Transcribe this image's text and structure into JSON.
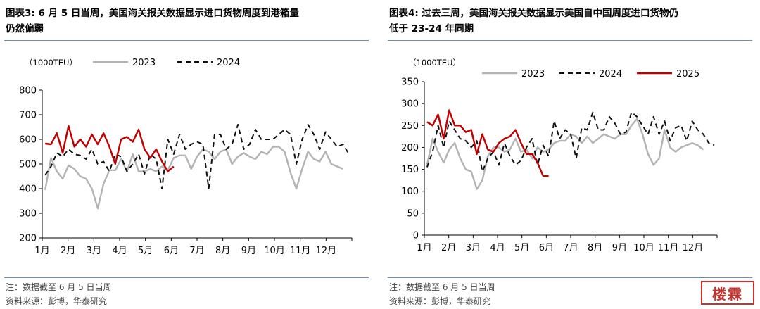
{
  "charts": [
    {
      "title_line1": "图表3:  6 月 5 日当周，美国海关报关数据显示进口货物周度到港箱量",
      "title_line2": "仍然偏弱",
      "note_line1": "注：数据截至 6 月 5 日当周",
      "note_line2": "资料来源：彭博，华泰研究"
    },
    {
      "title_line1": "图表4:  过去三周，美国海关报关数据显示美国自中国周度进口货物仍",
      "title_line2": "低于 23-24 年同期",
      "note_line1": "注：数据截至 6 月 5 日当周",
      "note_line2": "资料来源：彭博，华泰研究"
    }
  ],
  "stamp": "楼霖",
  "chart_data": [
    {
      "type": "line",
      "unit_label": "（1000TEU）",
      "xlabels": [
        "1月",
        "2月",
        "3月",
        "4月",
        "5月",
        "6月",
        "7月",
        "8月",
        "9月",
        "10月",
        "11月",
        "12月"
      ],
      "ylim": [
        200,
        800
      ],
      "yticks": [
        200,
        300,
        400,
        500,
        600,
        700,
        800
      ],
      "legend_position": "top",
      "grid": false,
      "series": [
        {
          "name": "2023",
          "color": "#b3b3b3",
          "dash": "solid",
          "values": [
            395,
            525,
            470,
            440,
            495,
            480,
            450,
            440,
            400,
            320,
            420,
            475,
            475,
            520,
            470,
            540,
            470,
            470,
            480,
            470,
            490,
            475,
            525,
            535,
            535,
            480,
            530,
            560,
            550,
            520,
            550,
            560,
            500,
            530,
            545,
            530,
            520,
            550,
            540,
            570,
            570,
            550,
            465,
            400,
            480,
            550,
            520,
            510,
            550,
            500,
            490,
            480
          ]
        },
        {
          "name": "2024",
          "color": "#111111",
          "dash": "dashed",
          "values": [
            455,
            490,
            545,
            530,
            560,
            540,
            535,
            520,
            560,
            500,
            510,
            470,
            540,
            530,
            470,
            500,
            540,
            460,
            540,
            520,
            400,
            600,
            540,
            620,
            560,
            580,
            590,
            580,
            400,
            620,
            620,
            560,
            580,
            660,
            560,
            580,
            640,
            600,
            600,
            600,
            620,
            640,
            620,
            500,
            600,
            660,
            620,
            560,
            630,
            600,
            570,
            580,
            540
          ]
        },
        {
          "name": "",
          "color": "#c00000",
          "dash": "solid",
          "values": [
            583,
            580,
            625,
            545,
            655,
            570,
            600,
            570,
            620,
            580,
            625,
            570,
            500,
            600,
            610,
            590,
            640,
            560,
            525,
            560,
            510,
            470,
            490
          ]
        }
      ]
    },
    {
      "type": "line",
      "unit_label": "（1000TEU）",
      "xlabels": [
        "1月",
        "2月",
        "3月",
        "4月",
        "5月",
        "6月",
        "7月",
        "8月",
        "9月",
        "10月",
        "11月",
        "12月"
      ],
      "ylim": [
        0,
        350
      ],
      "yticks": [
        0,
        50,
        100,
        150,
        200,
        250,
        300,
        350
      ],
      "legend_position": "top",
      "grid": false,
      "series": [
        {
          "name": "2023",
          "color": "#b3b3b3",
          "dash": "solid",
          "values": [
            160,
            220,
            190,
            165,
            195,
            210,
            175,
            150,
            145,
            105,
            125,
            180,
            200,
            200,
            190,
            195,
            220,
            190,
            195,
            175,
            200,
            190,
            195,
            210,
            215,
            215,
            230,
            225,
            210,
            225,
            210,
            220,
            230,
            225,
            220,
            230,
            230,
            250,
            265,
            230,
            185,
            160,
            175,
            240,
            200,
            190,
            200,
            205,
            210,
            205,
            195
          ]
        },
        {
          "name": "2024",
          "color": "#111111",
          "dash": "dashed",
          "values": [
            155,
            190,
            250,
            200,
            260,
            240,
            220,
            215,
            200,
            215,
            145,
            175,
            190,
            160,
            210,
            180,
            160,
            170,
            200,
            220,
            160,
            205,
            180,
            260,
            220,
            240,
            230,
            175,
            245,
            240,
            280,
            240,
            240,
            270,
            255,
            230,
            235,
            280,
            270,
            250,
            230,
            270,
            230,
            260,
            215,
            245,
            250,
            215,
            260,
            240,
            230,
            210,
            205
          ]
        },
        {
          "name": "2025",
          "color": "#c00000",
          "dash": "solid",
          "values": [
            258,
            250,
            275,
            220,
            285,
            250,
            250,
            235,
            240,
            185,
            230,
            195,
            190,
            210,
            220,
            225,
            240,
            210,
            185,
            185,
            165,
            135,
            135
          ]
        }
      ]
    }
  ]
}
